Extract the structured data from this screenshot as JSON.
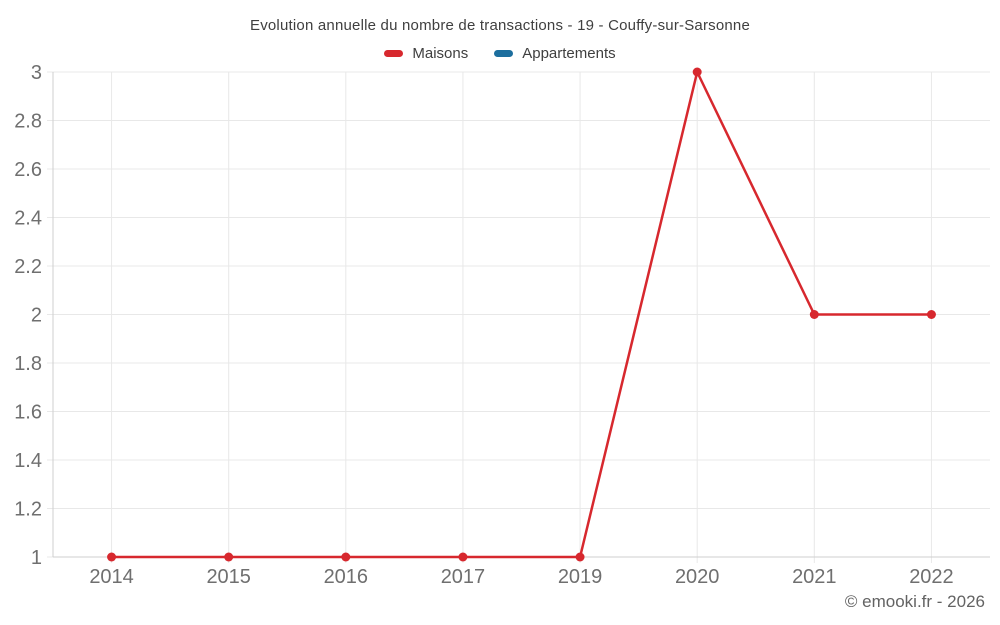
{
  "header": {
    "title": "Evolution annuelle du nombre de transactions - 19 - Couffy-sur-Sarsonne"
  },
  "footer": {
    "credit": "© emooki.fr - 2026"
  },
  "colors": {
    "maisons": "#d7282e",
    "appartements": "#1c6e9e",
    "grid_line": "#e8e8e8",
    "axis_line": "#cfcfcf",
    "tick_label": "#6f6f6f",
    "title_text": "#3f3f3f"
  },
  "chart_data": {
    "type": "line",
    "title": "Evolution annuelle du nombre de transactions - 19 - Couffy-sur-Sarsonne",
    "categories": [
      "2014",
      "2015",
      "2016",
      "2017",
      "2019",
      "2020",
      "2021",
      "2022"
    ],
    "series": [
      {
        "name": "Maisons",
        "color": "#d7282e",
        "values": [
          1,
          1,
          1,
          1,
          1,
          3,
          2,
          2
        ]
      },
      {
        "name": "Appartements",
        "color": "#1c6e9e",
        "values": []
      }
    ],
    "xlabel": "",
    "ylabel": "",
    "ylim": [
      1,
      3
    ],
    "ytick_step": 0.2,
    "ytick_labels": [
      "1",
      "1.2",
      "1.4",
      "1.6",
      "1.8",
      "2",
      "2.2",
      "2.4",
      "2.6",
      "2.8",
      "3"
    ],
    "grid": true,
    "legend_position": "top"
  }
}
